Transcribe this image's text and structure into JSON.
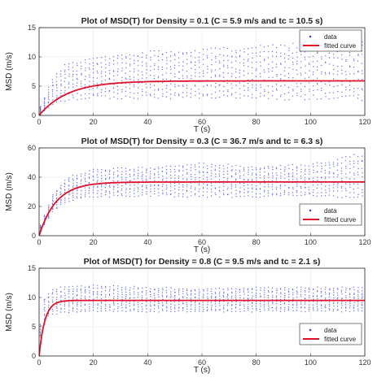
{
  "chart_data": [
    {
      "type": "scatter",
      "title": "Plot of MSD(T) for Density = 0.1 (C = 5.9 m/s and tc = 10.5 s)",
      "xlabel": "T (s)",
      "ylabel": "MSD (m/s)",
      "xlim": [
        0,
        120
      ],
      "ylim": [
        0,
        15
      ],
      "xticks": [
        0,
        20,
        40,
        60,
        80,
        100,
        120
      ],
      "yticks": [
        0,
        5,
        10,
        15
      ],
      "grid": true,
      "legend_position": "top-right",
      "fit": {
        "C": 5.9,
        "tc": 10.5
      },
      "data_band": {
        "x": [
          0,
          5,
          10,
          20,
          40,
          60,
          80,
          100,
          120
        ],
        "low": [
          0.3,
          1.5,
          2.5,
          2.8,
          2.8,
          2.8,
          2.6,
          2.6,
          2.5
        ],
        "high": [
          1.0,
          6.5,
          9.0,
          10.0,
          11.0,
          11.5,
          12.0,
          12.5,
          13.5
        ]
      },
      "series": [
        {
          "name": "data",
          "color": "#4040d0"
        },
        {
          "name": "fitted curve",
          "color": "#e0102a"
        }
      ]
    },
    {
      "type": "scatter",
      "title": "Plot of MSD(T) for Density = 0.3 (C = 36.7 m/s and tc = 6.3 s)",
      "xlabel": "T (s)",
      "ylabel": "MSD (m/s)",
      "xlim": [
        0,
        120
      ],
      "ylim": [
        0,
        60
      ],
      "xticks": [
        0,
        20,
        40,
        60,
        80,
        100,
        120
      ],
      "yticks": [
        0,
        20,
        40,
        60
      ],
      "grid": true,
      "legend_position": "bottom-right",
      "fit": {
        "C": 36.7,
        "tc": 6.3
      },
      "data_band": {
        "x": [
          0,
          5,
          10,
          20,
          40,
          60,
          80,
          100,
          120
        ],
        "low": [
          1.0,
          16.0,
          23.0,
          26.0,
          27.0,
          26.0,
          26.0,
          27.0,
          25.0
        ],
        "high": [
          5.0,
          28.0,
          40.0,
          46.0,
          47.0,
          50.0,
          48.0,
          49.0,
          57.0
        ]
      },
      "series": [
        {
          "name": "data",
          "color": "#4040d0"
        },
        {
          "name": "fitted curve",
          "color": "#e0102a"
        }
      ]
    },
    {
      "type": "scatter",
      "title": "Plot of MSD(T) for Density = 0.8 (C = 9.5 m/s and tc = 2.1 s)",
      "xlabel": "T (s)",
      "ylabel": "MSD (m/s)",
      "xlim": [
        0,
        120
      ],
      "ylim": [
        0,
        15
      ],
      "xticks": [
        0,
        20,
        40,
        60,
        80,
        100,
        120
      ],
      "yticks": [
        0,
        5,
        10,
        15
      ],
      "grid": true,
      "legend_position": "bottom-right",
      "fit": {
        "C": 9.5,
        "tc": 2.1
      },
      "data_band": {
        "x": [
          0,
          2,
          5,
          10,
          20,
          40,
          60,
          80,
          100,
          120
        ],
        "low": [
          2.0,
          6.0,
          7.0,
          7.3,
          7.5,
          7.5,
          7.5,
          7.5,
          7.5,
          7.5
        ],
        "high": [
          4.0,
          10.0,
          11.5,
          12.0,
          12.2,
          11.8,
          11.5,
          11.8,
          11.8,
          11.8
        ]
      },
      "series": [
        {
          "name": "data",
          "color": "#4040d0"
        },
        {
          "name": "fitted curve",
          "color": "#e0102a"
        }
      ]
    }
  ]
}
